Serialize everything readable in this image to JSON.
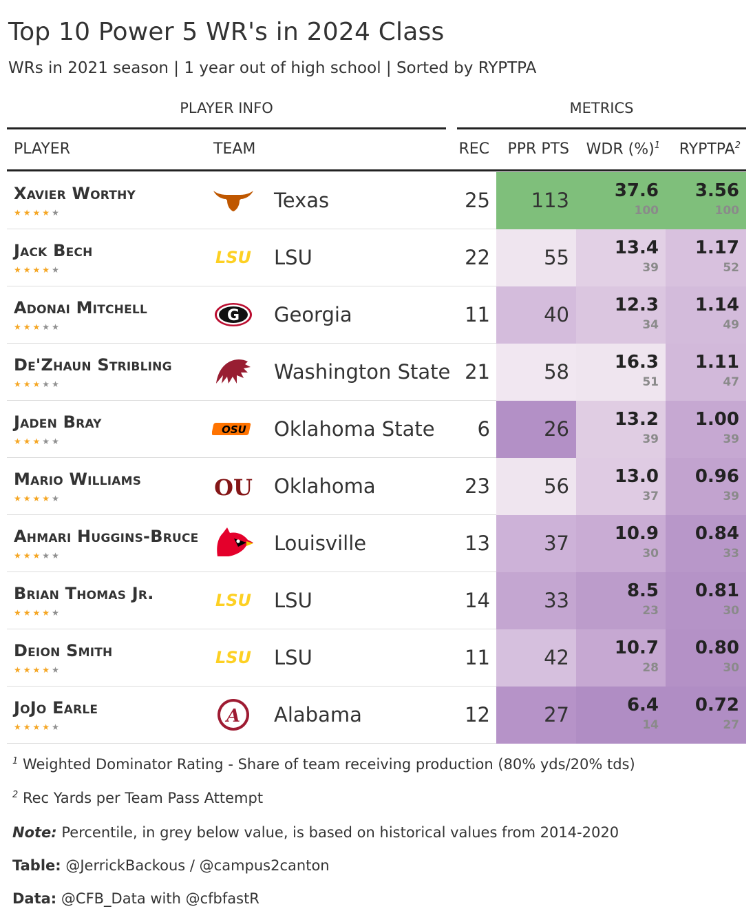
{
  "title": "Top 10 Power 5 WR's in 2024 Class",
  "subtitle": "WRs in 2021 season | 1 year out of high school | Sorted by RYPTPA",
  "spanners": {
    "player_info": "PLAYER INFO",
    "metrics": "METRICS"
  },
  "columns": {
    "player": "PLAYER",
    "team": "TEAM",
    "rec": "REC",
    "ppr": "PPR PTS",
    "wdr": "WDR (%)",
    "wdr_note": "1",
    "ryptpa": "RYPTPA",
    "ryptpa_note": "2"
  },
  "colors": {
    "texas": "#bf5700",
    "lsu": "#fdd023",
    "georgia": "#ba0c2f",
    "wsu": "#981e32",
    "okstate": "#ff7300",
    "oklahoma": "#841617",
    "louisville": "#e4002b",
    "alabama": "#9e1b32",
    "star_on": "#f5a623",
    "star_off": "#8f8f8f",
    "best": "#7fbf7b"
  },
  "chart_data": {
    "type": "table",
    "title": "Top 10 Power 5 WR's in 2024 Class",
    "rows": [
      {
        "name": "Xavier Worthy",
        "stars": 4,
        "logo": "texas-longhorn-icon",
        "team": "Texas",
        "rec": "25",
        "ppr": "113",
        "wdr": "37.6",
        "wdr_pct": "100",
        "ryptpa": "3.56",
        "ryptpa_pct": "100",
        "ppr_color": "#7fbf7b",
        "wdr_color": "#7fbf7b",
        "ry_color": "#7fbf7b"
      },
      {
        "name": "Jack Bech",
        "stars": 4,
        "logo": "lsu-logo-icon",
        "team": "LSU",
        "rec": "22",
        "ppr": "55",
        "wdr": "13.4",
        "wdr_pct": "39",
        "ryptpa": "1.17",
        "ryptpa_pct": "52",
        "ppr_color": "#efe5ef",
        "wdr_color": "#e2d0e5",
        "ry_color": "#d8c1de"
      },
      {
        "name": "Adonai Mitchell",
        "stars": 3,
        "logo": "georgia-g-icon",
        "team": "Georgia",
        "rec": "11",
        "ppr": "40",
        "wdr": "12.3",
        "wdr_pct": "34",
        "ryptpa": "1.14",
        "ryptpa_pct": "49",
        "ppr_color": "#d4bcdc",
        "wdr_color": "#dbc6e0",
        "ry_color": "#d3bbdb"
      },
      {
        "name": "De'Zhaun Stribling",
        "stars": 3,
        "logo": "wsu-cougar-icon",
        "team": "Washington State",
        "rec": "21",
        "ppr": "58",
        "wdr": "16.3",
        "wdr_pct": "51",
        "ryptpa": "1.11",
        "ryptpa_pct": "47",
        "ppr_color": "#f1e7f1",
        "wdr_color": "#efe5ef",
        "ry_color": "#d2b9da"
      },
      {
        "name": "Jaden Bray",
        "stars": 3,
        "logo": "okstate-logo-icon",
        "team": "Oklahoma State",
        "rec": "6",
        "ppr": "26",
        "wdr": "13.2",
        "wdr_pct": "39",
        "ryptpa": "1.00",
        "ryptpa_pct": "39",
        "ppr_color": "#b390c6",
        "wdr_color": "#e0cde3",
        "ry_color": "#c6a8d2"
      },
      {
        "name": "Mario Williams",
        "stars": 4,
        "logo": "oklahoma-ou-icon",
        "team": "Oklahoma",
        "rec": "23",
        "ppr": "56",
        "wdr": "13.0",
        "wdr_pct": "37",
        "ryptpa": "0.96",
        "ryptpa_pct": "39",
        "ppr_color": "#efe5ef",
        "wdr_color": "#dfcbe3",
        "ry_color": "#c2a3cf"
      },
      {
        "name": "Ahmari Huggins-Bruce",
        "stars": 3,
        "logo": "louisville-cardinal-icon",
        "team": "Louisville",
        "rec": "13",
        "ppr": "37",
        "wdr": "10.9",
        "wdr_pct": "30",
        "ryptpa": "0.84",
        "ryptpa_pct": "33",
        "ppr_color": "#cdb2d8",
        "wdr_color": "#c9acd4",
        "ry_color": "#b897c9"
      },
      {
        "name": "Brian Thomas Jr.",
        "stars": 4,
        "logo": "lsu-logo-icon",
        "team": "LSU",
        "rec": "14",
        "ppr": "33",
        "wdr": "8.5",
        "wdr_pct": "23",
        "ryptpa": "0.81",
        "ryptpa_pct": "30",
        "ppr_color": "#c4a6d1",
        "wdr_color": "#bc9ccb",
        "ry_color": "#b593c7"
      },
      {
        "name": "Deion Smith",
        "stars": 4,
        "logo": "lsu-logo-icon",
        "team": "LSU",
        "rec": "11",
        "ppr": "42",
        "wdr": "10.7",
        "wdr_pct": "28",
        "ryptpa": "0.80",
        "ryptpa_pct": "30",
        "ppr_color": "#d6c0de",
        "wdr_color": "#c6a8d2",
        "ry_color": "#b491c6"
      },
      {
        "name": "JoJo Earle",
        "stars": 4,
        "logo": "alabama-a-icon",
        "team": "Alabama",
        "rec": "12",
        "ppr": "27",
        "wdr": "6.4",
        "wdr_pct": "14",
        "ryptpa": "0.72",
        "ryptpa_pct": "27",
        "ppr_color": "#b693c8",
        "wdr_color": "#b08dc4",
        "ry_color": "#b08dc4"
      }
    ]
  },
  "footnotes": {
    "n1_mark": "1",
    "n1": "Weighted Dominator Rating - Share of team receiving production (80% yds/20% tds)",
    "n2_mark": "2",
    "n2": "Rec Yards per Team Pass Attempt",
    "note_label": "Note:",
    "note": "Percentile, in grey below value, is based on historical values from 2014-2020",
    "table_label": "Table:",
    "table": "@JerrickBackous / @campus2canton",
    "data_label": "Data:",
    "data": "@CFB_Data with @cfbfastR"
  },
  "logos": {
    "lsu_text": "LSU",
    "georgia_text": "G",
    "okstate_text": "OSU",
    "oklahoma_text": "OU",
    "alabama_text": "A"
  }
}
